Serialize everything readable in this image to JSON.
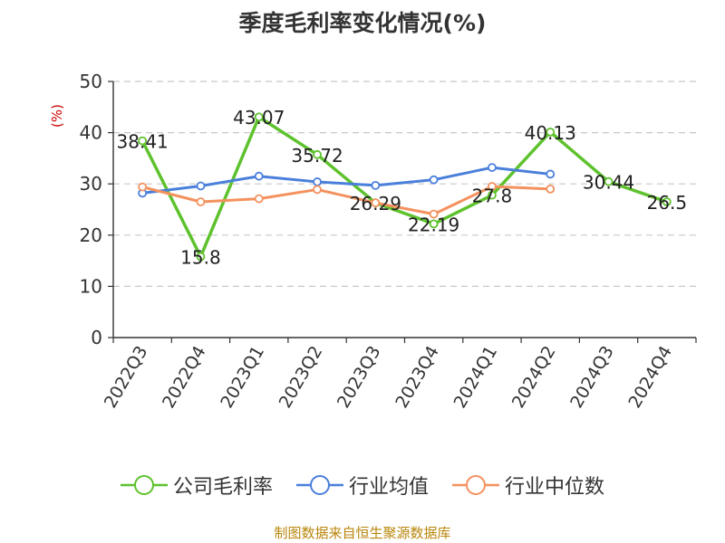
{
  "chart_data": {
    "type": "line",
    "title": "季度毛利率变化情况(%)",
    "ylabel": "(%)",
    "xlabel": "",
    "ylim": [
      0,
      50
    ],
    "yticks": [
      0,
      10,
      20,
      30,
      40,
      50
    ],
    "grid": true,
    "legend_position": "bottom",
    "categories": [
      "2022Q3",
      "2022Q4",
      "2023Q1",
      "2023Q2",
      "2023Q3",
      "2023Q4",
      "2024Q1",
      "2024Q2",
      "2024Q3",
      "2024Q4"
    ],
    "series": [
      {
        "name": "公司毛利率",
        "color": "#5ec22d",
        "values": [
          38.41,
          15.8,
          43.07,
          35.72,
          26.29,
          22.19,
          27.8,
          40.13,
          30.44,
          26.5
        ],
        "labels": [
          "38.41",
          "15.8",
          "43.07",
          "35.72",
          "26.29",
          "22.19",
          "27.8",
          "40.13",
          "30.44",
          "26.5"
        ]
      },
      {
        "name": "行业均值",
        "color": "#4a7fdb",
        "values": [
          28.2,
          29.6,
          31.5,
          30.4,
          29.7,
          30.8,
          33.2,
          31.9,
          null,
          null
        ]
      },
      {
        "name": "行业中位数",
        "color": "#f4915e",
        "values": [
          29.4,
          26.5,
          27.1,
          28.9,
          26.3,
          24.1,
          29.5,
          29.0,
          null,
          null
        ]
      }
    ]
  },
  "source_text": "制图数据来自恒生聚源数据库"
}
